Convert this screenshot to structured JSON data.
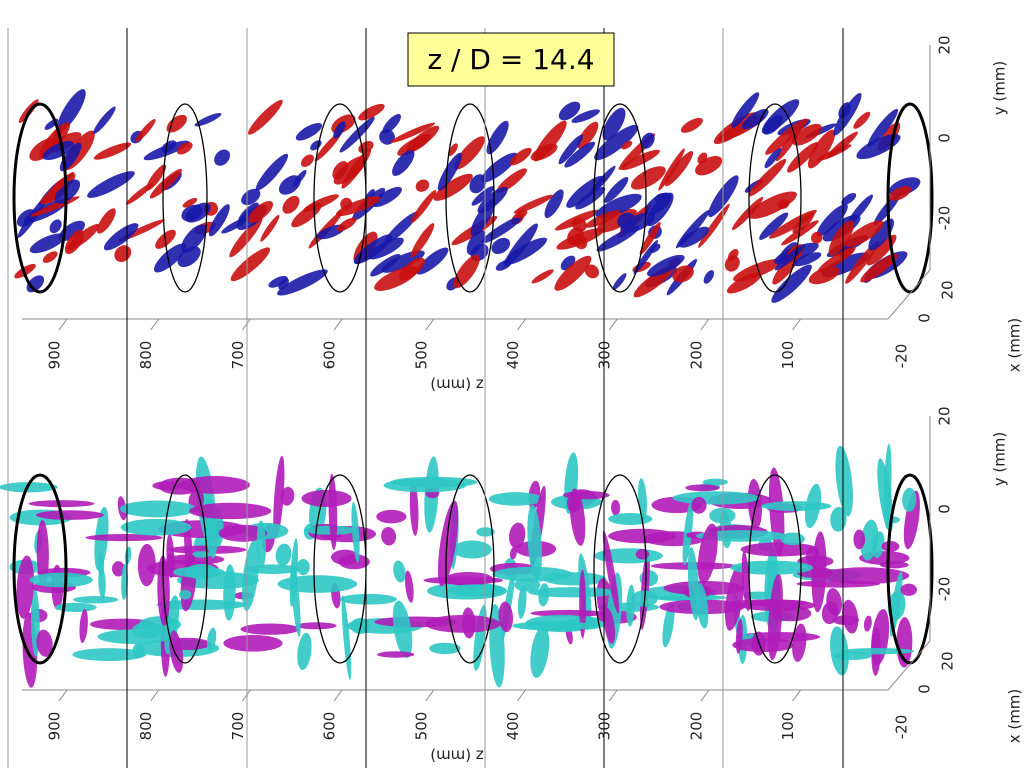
{
  "label": "z / D = 14.4",
  "panels": [
    {
      "z_ticks": [
        "900",
        "800",
        "700",
        "600",
        "500",
        "400",
        "300",
        "200",
        "100"
      ],
      "z_label": "z (mm)",
      "y_ticks": [
        "20",
        "0",
        "-20"
      ],
      "y_label": "y (mm)",
      "x_ticks": [
        "20",
        "0",
        "-20"
      ],
      "x_label": "x (mm)"
    },
    {
      "z_ticks": [
        "900",
        "800",
        "700",
        "600",
        "500",
        "400",
        "300",
        "200",
        "100"
      ],
      "z_label": "z (mm)",
      "y_ticks": [
        "20",
        "0",
        "-20"
      ],
      "y_label": "y (mm)",
      "x_ticks": [
        "20",
        "0",
        "-20"
      ],
      "x_label": "x (mm)"
    }
  ]
}
